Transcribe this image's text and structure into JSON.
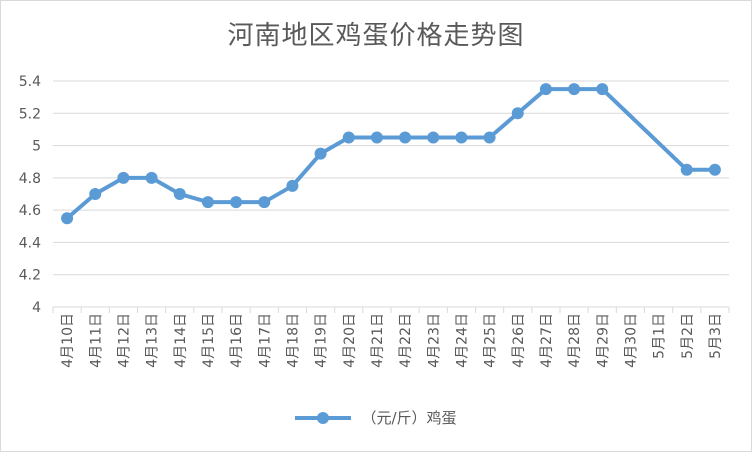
{
  "chart_data": {
    "type": "line",
    "title": "河南地区鸡蛋价格走势图",
    "categories": [
      "4月10日",
      "4月11日",
      "4月12日",
      "4月13日",
      "4月14日",
      "4月15日",
      "4月16日",
      "4月17日",
      "4月18日",
      "4月19日",
      "4月20日",
      "4月21日",
      "4月22日",
      "4月23日",
      "4月24日",
      "4月25日",
      "4月26日",
      "4月27日",
      "4月28日",
      "4月29日",
      "4月30日",
      "5月1日",
      "5月2日",
      "5月3日"
    ],
    "series": [
      {
        "name": "（元/斤）鸡蛋",
        "values": [
          4.55,
          4.7,
          4.8,
          4.8,
          4.7,
          4.65,
          4.65,
          4.65,
          4.75,
          4.95,
          5.05,
          5.05,
          5.05,
          5.05,
          5.05,
          5.05,
          5.2,
          5.35,
          5.35,
          5.35,
          null,
          null,
          4.85,
          4.85
        ]
      }
    ],
    "yticks": [
      "4",
      "4.2",
      "4.4",
      "4.6",
      "4.8",
      "5",
      "5.2",
      "5.4"
    ],
    "ylim": [
      4,
      5.4
    ],
    "grid": true,
    "gaps": "connected",
    "legend_position": "bottom",
    "colors": {
      "series": "#5b9bd5",
      "grid": "#d9d9d9",
      "text": "#595959"
    }
  }
}
